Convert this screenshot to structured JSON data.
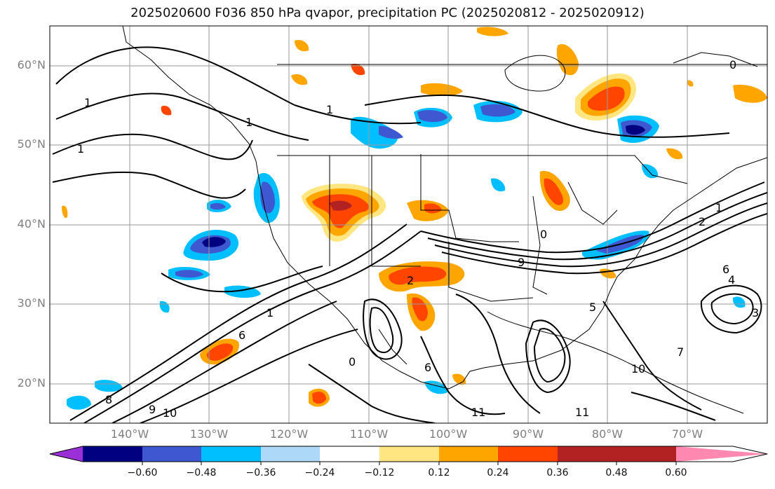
{
  "title": "2025020600 F036 850 hPa qvapor, precipitation PC (2025020812 - 2025020912)",
  "map": {
    "lat_labels": [
      "60°N",
      "50°N",
      "40°N",
      "30°N",
      "20°N"
    ],
    "lon_labels": [
      "140°W",
      "130°W",
      "120°W",
      "110°W",
      "100°W",
      "90°W",
      "80°W",
      "70°W"
    ],
    "contour_labels": [
      "1",
      "1",
      "1",
      "1",
      "2",
      "6",
      "8",
      "9",
      "10",
      "0",
      "5",
      "6",
      "4",
      "3",
      "7",
      "10",
      "11",
      "11",
      "1",
      "1",
      "2",
      "0",
      "6",
      "9",
      "0"
    ]
  },
  "colorbar": {
    "tick_labels": [
      "−0.60",
      "−0.48",
      "−0.36",
      "−0.24",
      "−0.12",
      "0.12",
      "0.24",
      "0.36",
      "0.48",
      "0.60"
    ],
    "colors": [
      "#9b30d9",
      "#000080",
      "#3e58d1",
      "#00bfff",
      "#add8f7",
      "#ffffff",
      "#ffe680",
      "#ffa500",
      "#ff4500",
      "#b22222",
      "#ff88b0"
    ]
  }
}
